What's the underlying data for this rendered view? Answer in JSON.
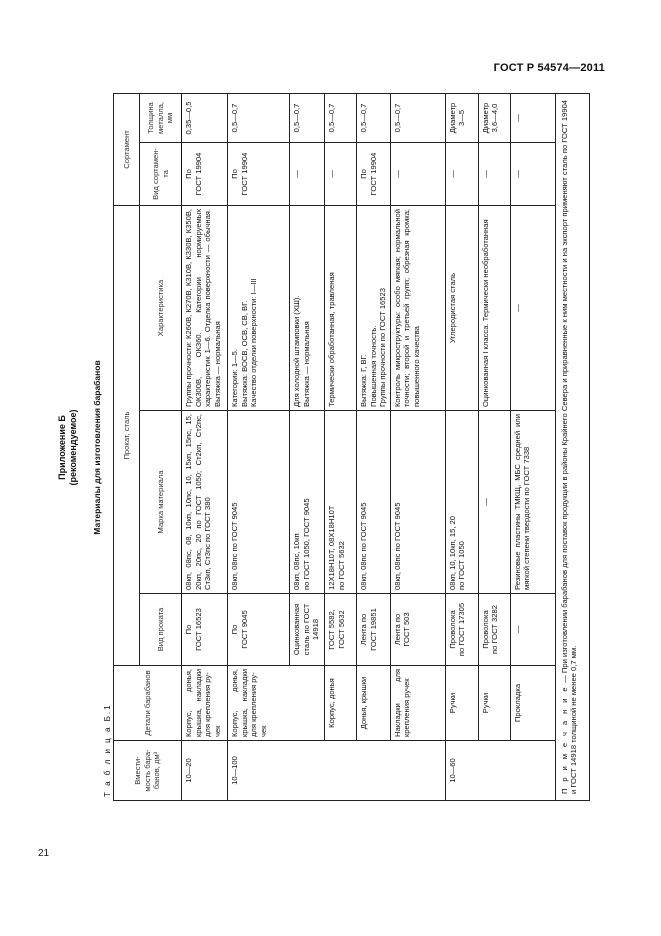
{
  "header": {
    "doc_code": "ГОСТ Р 54574—2011"
  },
  "footer": {
    "page_number": "21"
  },
  "appendix": {
    "title": "Приложение Б",
    "subtitle": "(рекомендуемое)"
  },
  "table_title": "Материалы для изготовления барабанов",
  "table_label": "Т а б л и ц а  Б.1",
  "columns": {
    "capacity": "Вмести-\nмость бара-\nбанов, дм³",
    "details": "Детали барабанов",
    "rolled_group": "Прокат, сталь",
    "rolled_type": "Вид проката",
    "grade": "Марка материала",
    "characteristic": "Характеристика",
    "assortment_group": "Сортамент",
    "assortment_type": "Вид сортамен-\nта",
    "thickness": "Толщина\nметалла,\nмм"
  },
  "rows": [
    {
      "capacity": "10—20",
      "details": "Корпус, донья, крышка, накладки для крепления ру-\nчек",
      "rolled_type": "По\nГОСТ 16523",
      "grade": "08кп, 08пс, 08, 10кп, 10пс, 10, 15кп, 15пс, 15, 20кп, 20пс, 20 по ГОСТ 1050; Ст2кп, Ст2пс, Ст3кп, Ст3пс по ГОСТ 380",
      "characteristic": "Группы прочности: К260В, К270В, К310В, К330В, К350В, ОК300В, ОК360. Категории нормируемых характеристик 1—6. Отделка поверхности — обычная. Вытяжка — нормальная",
      "assortment": "По\nГОСТ 19904",
      "thickness": "0,35—0,5"
    },
    {
      "capacity": "10—100",
      "details": "Корпус, донья, крышка, накладки для крепления ру-\nчек",
      "rolled_type": "По\nГОСТ 9045",
      "grade": "08кп, 08пс по ГОСТ 9045",
      "characteristic": "Категории: 1—5.\nВытяжка: ВОСВ, ОСВ, СВ, ВГ.\nКачество отделки поверхности: I—III",
      "assortment": "По\nГОСТ 19904",
      "thickness": "0,5—0,7"
    },
    {
      "rolled_type": "Оцинкованная сталь по ГОСТ 14918",
      "grade": "08кп, 08пс, 10кп\nпо ГОСТ 1050, ГОСТ 9045",
      "characteristic": "Для холодной штамповки (ХШ).\nВытяжка — нормальная",
      "assortment": "—",
      "thickness": "0,5—0,7"
    },
    {
      "details": "Корпус, донья",
      "rolled_type": "ГОСТ 5582,\nГОСТ 5632",
      "grade": "12Х18Н10Т, 08Х18Н10Т\nпо ГОСТ 5632",
      "characteristic": "Термически обработанная, травленая",
      "assortment": "—",
      "thickness": "0,5—0,7"
    },
    {
      "details": "Донья, крышки",
      "rolled_type": "Лента по\nГОСТ 19851",
      "grade": "08кп, 08пс по ГОСТ 9045",
      "characteristic": "Вытяжка: Г, ВГ.\nПовышенная точность.\nГруппы прочности по ГОСТ 16523",
      "assortment": "По\nГОСТ 19904",
      "thickness": "0,5—0,7"
    },
    {
      "details": "Накладки для крепления ручек",
      "rolled_type": "Лента по\nГОСТ 503",
      "grade": "08кп, 08пс по ГОСТ 9045",
      "characteristic": "Контроль микроструктуры: особо мягкая; нормальной точности; второй и третьей групп; обрезная кромка; повышенного качества",
      "assortment": "—",
      "thickness": "0,5—0,7"
    },
    {
      "capacity": "10—60",
      "details": "Ручки",
      "rolled_type": "Проволока\nпо ГОСТ 17305",
      "grade": "08кп, 10, 10кп, 15, 20\nпо ГОСТ 1050",
      "characteristic": "Углеродистая сталь",
      "assortment": "—",
      "thickness": "Диаметр\n3—5"
    },
    {
      "details": "Ручки",
      "rolled_type": "Проволока\nпо ГОСТ 3282",
      "grade": "—",
      "characteristic": "Оцинкованная I класса. Термически необработанная",
      "assortment": "—",
      "thickness": "Диаметр\n3,6—4,0"
    },
    {
      "details": "Прокладка",
      "rolled_type": "—",
      "grade": "Резиновые пластины ТМКЩ, МБС средней или мягкой степени твердости по ГОСТ 7338",
      "characteristic": "—",
      "assortment": "—",
      "thickness": "—"
    }
  ],
  "note": {
    "label": "П р и м е ч а н и е",
    "text": " — При изготовлении барабанов для поставок продукции в районы Крайнего Севера и приравненные к ним местности и на экспорт применяют сталь по ГОСТ 19904 и ГОСТ 14918 толщиной не менее 0,7 мм."
  }
}
